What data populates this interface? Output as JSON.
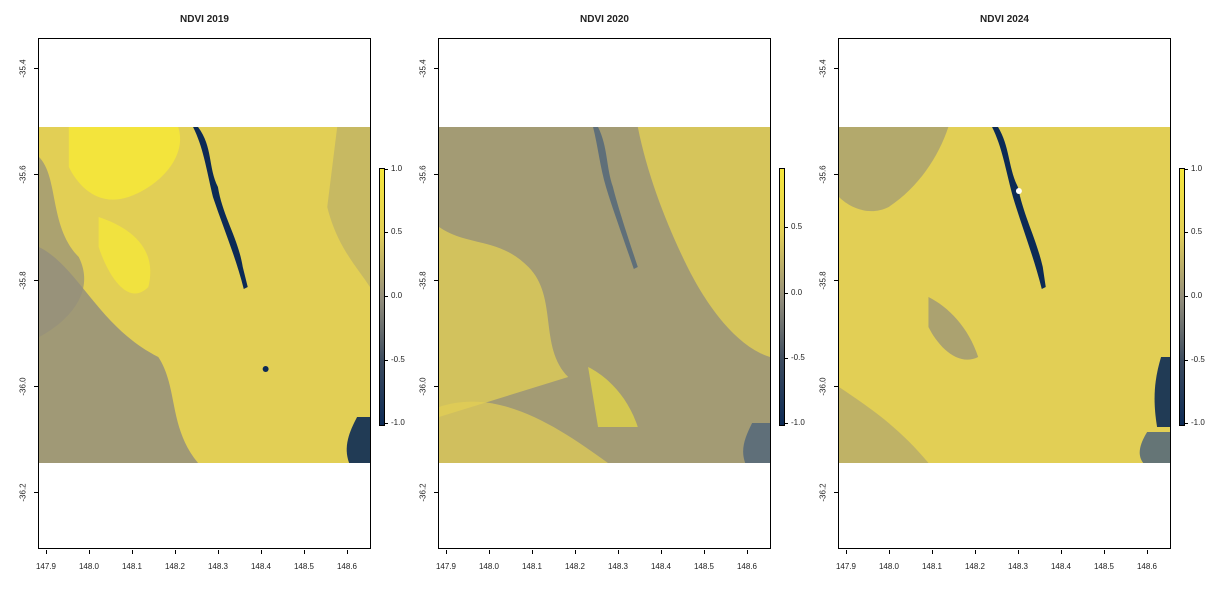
{
  "maps": [
    {
      "title": "NDVI 2019",
      "legend_ticks": [
        "1.0",
        "0.5",
        "0.0",
        "-0.5",
        "-1.0"
      ],
      "legend_range": [
        -1.0,
        1.0
      ]
    },
    {
      "title": "NDVI 2020",
      "legend_ticks": [
        "0.5",
        "0.0",
        "-0.5",
        "-1.0"
      ],
      "legend_range": [
        -1.0,
        0.95
      ]
    },
    {
      "title": "NDVI 2024",
      "legend_ticks": [
        "1.0",
        "0.5",
        "0.0",
        "-0.5",
        "-1.0"
      ],
      "legend_range": [
        -1.0,
        1.0
      ]
    }
  ],
  "y_ticks": [
    "-35.4",
    "-35.6",
    "-35.8",
    "-36.0",
    "-36.2"
  ],
  "x_ticks": [
    "147.9",
    "148.0",
    "148.1",
    "148.2",
    "148.3",
    "148.4",
    "148.5",
    "148.6"
  ],
  "colors": {
    "ndvi_high": "#f5e63a",
    "ndvi_mid": "#e2cf55",
    "ndvi_low": "#948f7c",
    "ndvi_water": "#0c2a55"
  }
}
